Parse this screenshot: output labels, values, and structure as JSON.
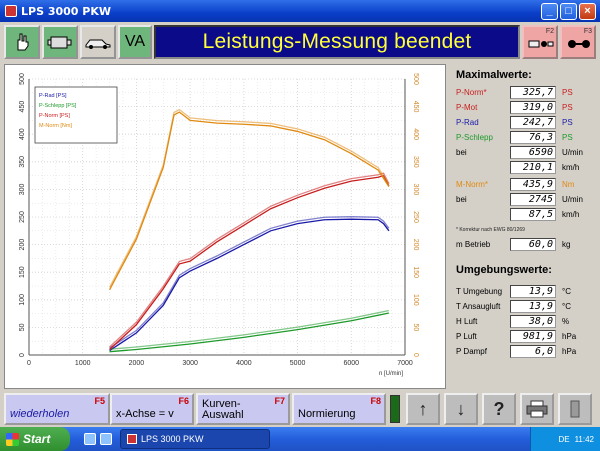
{
  "window": {
    "title": "LPS 3000 PKW"
  },
  "toolbar": {
    "va_label": "VA",
    "banner": "Leistungs-Messung beendet",
    "f2_key": "F2",
    "f3_key": "F3"
  },
  "chart_data": {
    "type": "line",
    "title": "",
    "xlabel": "n [U/min]",
    "ylabel_left": "P [PS]",
    "ylabel_right": "M [Nm]",
    "xlim": [
      0,
      7000
    ],
    "ylim": [
      0,
      500
    ],
    "y2lim": [
      0,
      500
    ],
    "x_ticks": [
      "0",
      "1000",
      "2000",
      "3000",
      "4000",
      "5000",
      "6000",
      "7000"
    ],
    "y_ticks": [
      "0",
      "50",
      "100",
      "150",
      "200",
      "250",
      "300",
      "350",
      "400",
      "450",
      "500"
    ],
    "y2_ticks": [
      "0",
      "50",
      "100",
      "150",
      "200",
      "250",
      "300",
      "350",
      "400",
      "450",
      "500"
    ],
    "grid": true,
    "legend_position": "top-left",
    "series": [
      {
        "name": "P-Rad [PS]",
        "color": "#1a1aa8",
        "x": [
          1500,
          2000,
          2500,
          2800,
          3000,
          3500,
          4000,
          4500,
          5000,
          5500,
          6000,
          6500,
          6600,
          6700
        ],
        "values": [
          8,
          40,
          90,
          140,
          152,
          175,
          200,
          225,
          238,
          245,
          246,
          245,
          238,
          225
        ]
      },
      {
        "name": "P-Schlepp [PS]",
        "color": "#1e9a2a",
        "x": [
          1500,
          2000,
          3000,
          4000,
          5000,
          6000,
          6700
        ],
        "values": [
          6,
          10,
          20,
          32,
          46,
          62,
          76
        ]
      },
      {
        "name": "P-Norm [PS]",
        "color": "#c81e1e",
        "x": [
          1500,
          2000,
          2500,
          2800,
          3000,
          3500,
          4000,
          4500,
          5000,
          5500,
          6000,
          6500,
          6600,
          6700
        ],
        "values": [
          10,
          55,
          120,
          165,
          170,
          205,
          235,
          265,
          285,
          302,
          315,
          322,
          325,
          306
        ]
      },
      {
        "name": "M-Norm [Nm]",
        "color": "#e08a12",
        "x": [
          1500,
          2000,
          2500,
          2700,
          2800,
          3000,
          3500,
          4000,
          4500,
          5000,
          5500,
          6000,
          6500,
          6700
        ],
        "values": [
          118,
          210,
          340,
          435,
          440,
          425,
          420,
          418,
          415,
          405,
          390,
          365,
          335,
          305
        ]
      }
    ]
  },
  "info": {
    "max_title": "Maximalwerte:",
    "rows_max": [
      {
        "label": "P-Norm*",
        "value": "325,7",
        "unit": "PS",
        "color": "#c81e1e"
      },
      {
        "label": "P-Mot",
        "value": "319,0",
        "unit": "PS",
        "color": "#c81e1e"
      },
      {
        "label": "P-Rad",
        "value": "242,7",
        "unit": "PS",
        "color": "#1a1aa8"
      },
      {
        "label": "P-Schlepp",
        "value": "76,3",
        "unit": "PS",
        "color": "#1e9a2a"
      },
      {
        "label": "bei",
        "value": "6590",
        "unit": "U/min",
        "color": "#000"
      },
      {
        "label": "",
        "value": "210,1",
        "unit": "km/h",
        "color": "#000"
      }
    ],
    "rows_torque": [
      {
        "label": "M-Norm*",
        "value": "435,9",
        "unit": "Nm",
        "color": "#e08a12"
      },
      {
        "label": "bei",
        "value": "2745",
        "unit": "U/min",
        "color": "#000"
      },
      {
        "label": "",
        "value": "87,5",
        "unit": "km/h",
        "color": "#000"
      }
    ],
    "note": "* Korrektur nach EWG 80/1269",
    "mass": {
      "label": "m Betrieb",
      "value": "60,0",
      "unit": "kg"
    },
    "env_title": "Umgebungswerte:",
    "rows_env": [
      {
        "label": "T Umgebung",
        "value": "13,9",
        "unit": "°C"
      },
      {
        "label": "T Ansaugluft",
        "value": "13,9",
        "unit": "°C"
      },
      {
        "label": "H Luft",
        "value": "38,0",
        "unit": "%"
      },
      {
        "label": "P Luft",
        "value": "981,9",
        "unit": "hPa"
      },
      {
        "label": "P Dampf",
        "value": "6,0",
        "unit": "hPa"
      }
    ]
  },
  "fbar": {
    "f5": {
      "key": "F5",
      "label": "wiederholen"
    },
    "f6": {
      "key": "F6",
      "label": "x-Achse = v"
    },
    "f7": {
      "key": "F7",
      "label1": "Kurven-",
      "label2": "Auswahl"
    },
    "f8": {
      "key": "F8",
      "label": "Normierung"
    },
    "up": "↑",
    "down": "↓",
    "help": "?"
  },
  "taskbar": {
    "start": "Start",
    "task": "LPS 3000 PKW",
    "lang": "DE",
    "clock": "11:42"
  }
}
